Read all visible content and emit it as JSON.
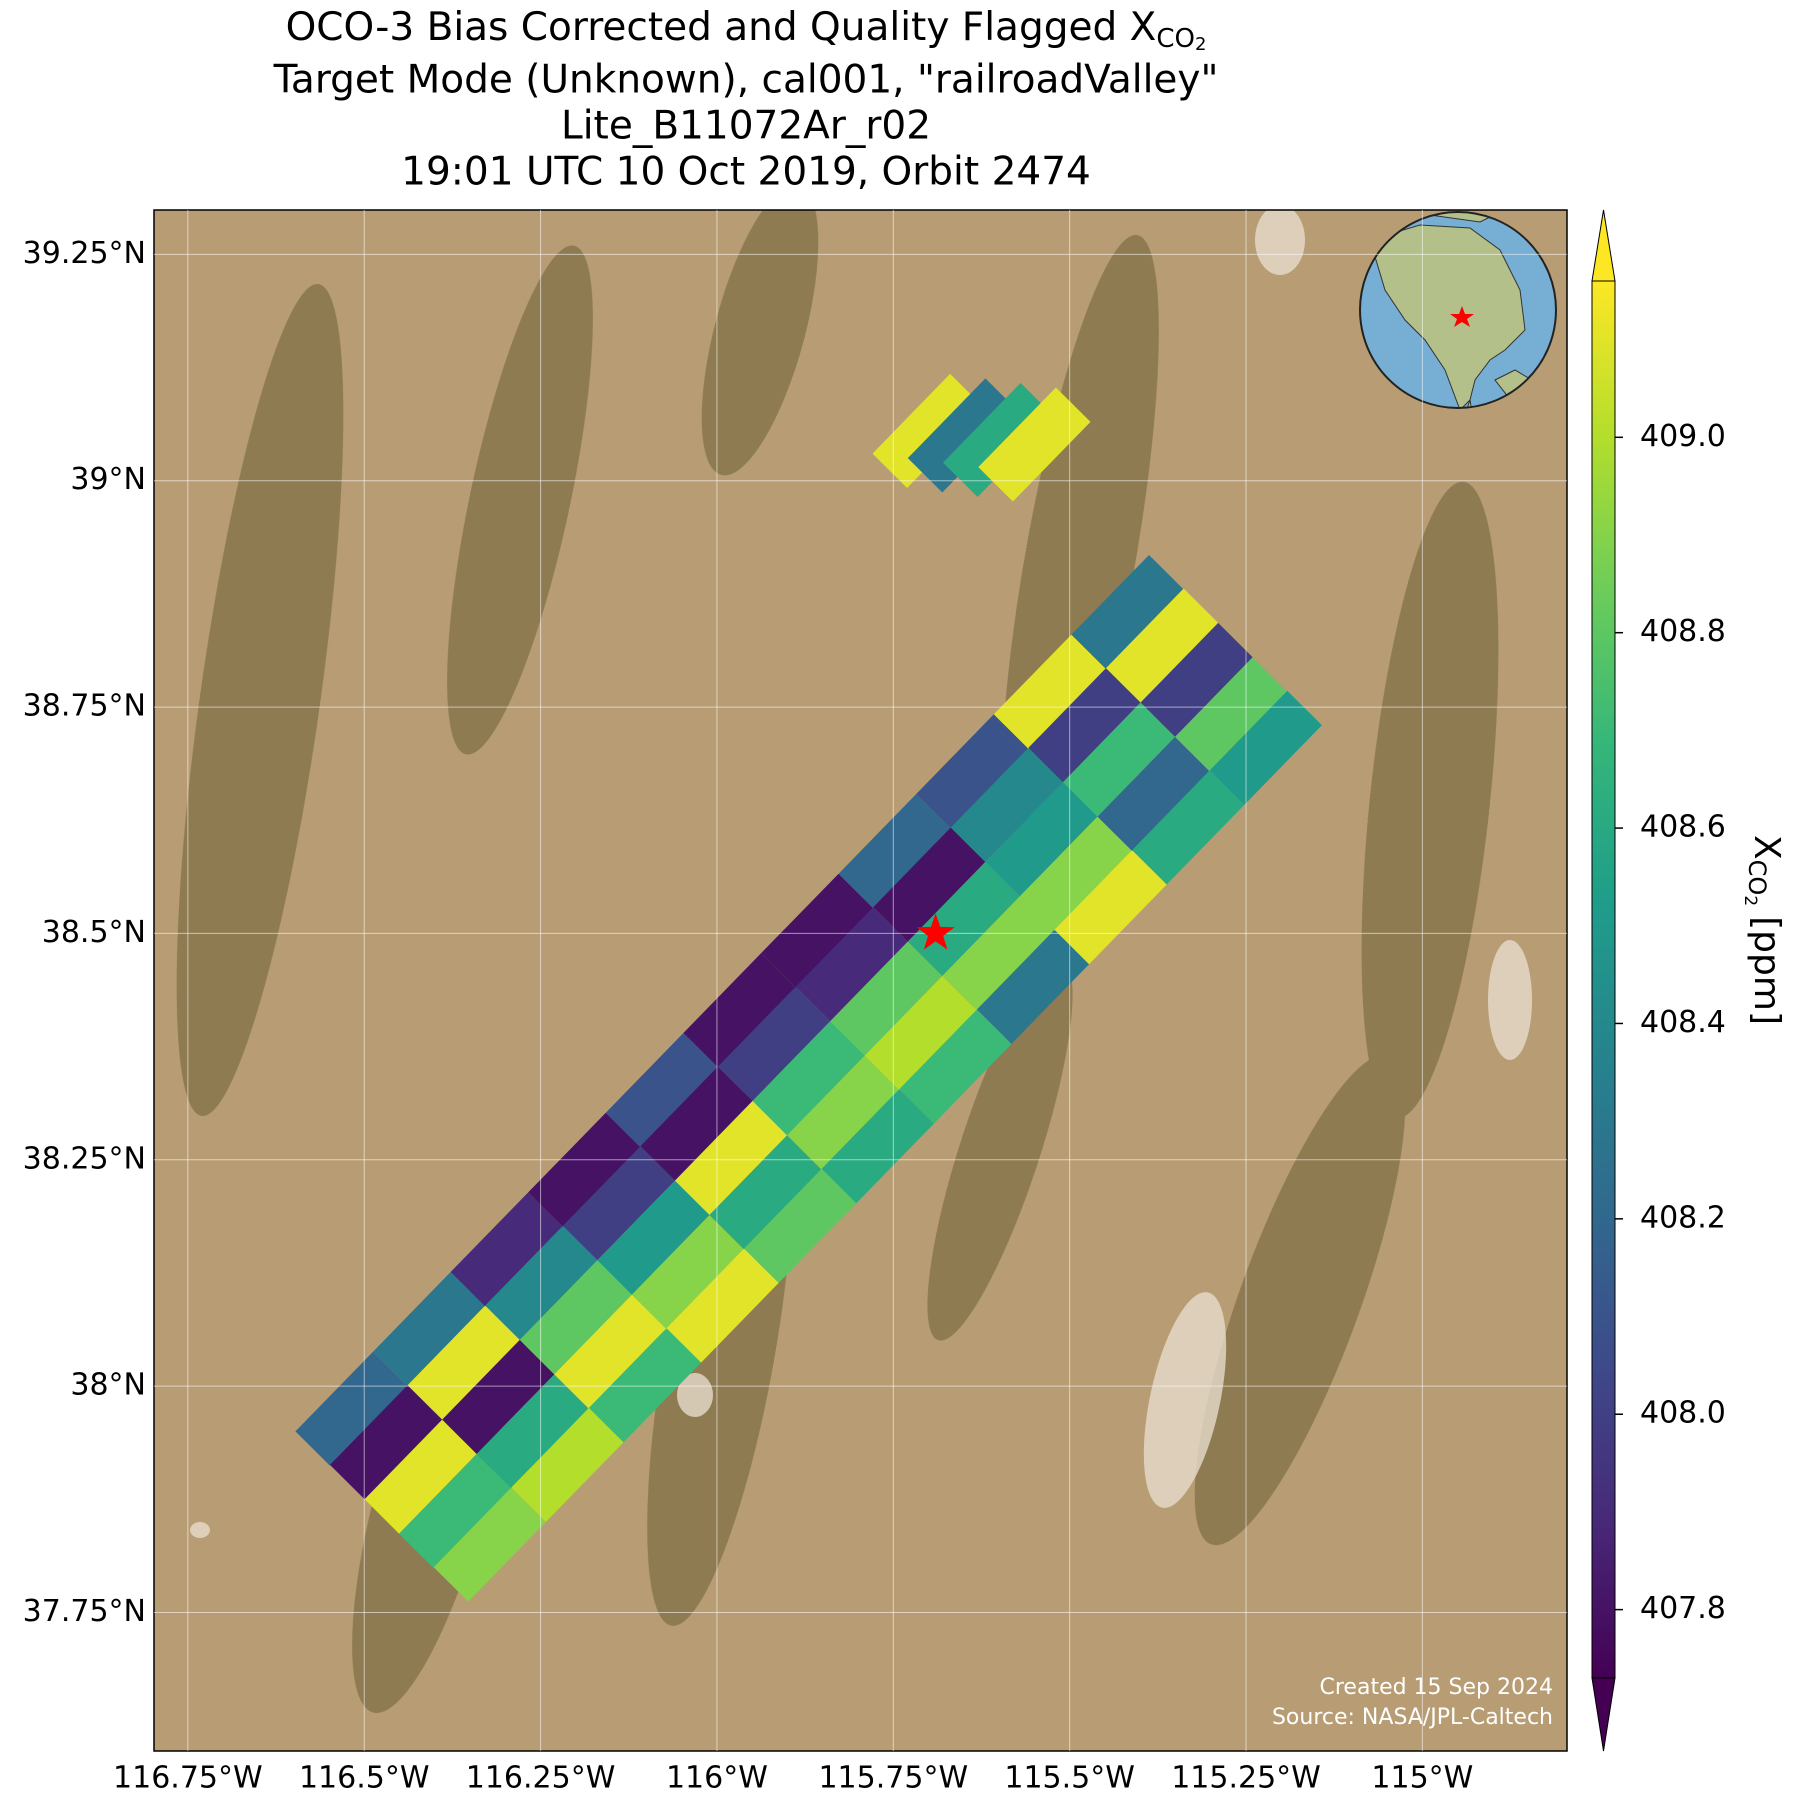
{
  "chart_data": {
    "type": "map",
    "title": [
      "OCO-3 Bias Corrected and Quality Flagged X",
      "Target Mode (Unknown), cal001, \"railroadValley\"",
      "Lite_B11072Ar_r02",
      "19:01 UTC 10 Oct 2019, Orbit 2474"
    ],
    "title_subscript": "CO",
    "title_subscript_digit": "2",
    "xlim": [
      -116.798,
      -114.795
    ],
    "ylim": [
      37.597,
      39.299
    ],
    "xticks": [
      {
        "value": -116.75,
        "label": "116.75°W"
      },
      {
        "value": -116.5,
        "label": "116.5°W"
      },
      {
        "value": -116.25,
        "label": "116.25°W"
      },
      {
        "value": -116,
        "label": "116°W"
      },
      {
        "value": -115.75,
        "label": "115.75°W"
      },
      {
        "value": -115.5,
        "label": "115.5°W"
      },
      {
        "value": -115.25,
        "label": "115.25°W"
      },
      {
        "value": -115,
        "label": "115°W"
      }
    ],
    "yticks": [
      {
        "value": 37.75,
        "label": "37.75°N"
      },
      {
        "value": 38,
        "label": "38°N"
      },
      {
        "value": 38.25,
        "label": "38.25°N"
      },
      {
        "value": 38.5,
        "label": "38.5°N"
      },
      {
        "value": 38.75,
        "label": "38.75°N"
      },
      {
        "value": 39,
        "label": "39°N"
      },
      {
        "value": 39.25,
        "label": "39.25°N"
      }
    ],
    "grid": true,
    "colorbar": {
      "label": "X",
      "label_subscript": "CO",
      "label_subscript_digit": "2",
      "label_unit": "[ppm]",
      "clim": [
        407.73,
        409.16
      ],
      "ticks": [
        407.8,
        {
          "value": 408,
          "label": "408.0"
        },
        408.2,
        408.4,
        408.6,
        408.8,
        {
          "value": 409,
          "label": "409.0"
        }
      ],
      "colormap": "viridis"
    },
    "soundings": {
      "lon": [
        -116.518,
        -116.469,
        -116.42,
        -116.371,
        -116.322,
        -116.408,
        -116.359,
        -116.31,
        -116.261,
        -116.212,
        -116.298,
        -116.249,
        -116.2,
        -116.151,
        -116.102,
        -116.188,
        -116.139,
        -116.09,
        -116.041,
        -115.992,
        -116.078,
        -116.029,
        -115.98,
        -115.931,
        -115.882,
        -115.968,
        -115.919,
        -115.87,
        -115.821,
        -115.772,
        -115.858,
        -115.809,
        -115.76,
        -115.711,
        -115.662,
        -115.748,
        -115.699,
        -115.65,
        -115.601,
        -115.552,
        -115.638,
        -115.589,
        -115.54,
        -115.491,
        -115.442,
        -115.528,
        -115.479,
        -115.43,
        -115.381,
        -115.332,
        -115.418,
        -115.369,
        -115.32,
        -115.271,
        -115.222,
        -115.7,
        -115.65,
        -115.6,
        -115.55
      ],
      "lat": [
        37.975,
        37.938,
        37.9,
        37.862,
        37.825,
        38.063,
        38.026,
        37.988,
        37.95,
        37.913,
        38.151,
        38.114,
        38.076,
        38.038,
        38.001,
        38.239,
        38.202,
        38.164,
        38.126,
        38.089,
        38.327,
        38.29,
        38.252,
        38.214,
        38.177,
        38.415,
        38.378,
        38.34,
        38.302,
        38.265,
        38.503,
        38.466,
        38.428,
        38.39,
        38.353,
        38.591,
        38.554,
        38.516,
        38.478,
        38.441,
        38.679,
        38.642,
        38.604,
        38.566,
        38.529,
        38.767,
        38.73,
        38.692,
        38.654,
        38.617,
        38.855,
        38.818,
        38.78,
        38.742,
        38.705,
        39.055,
        39.05,
        39.045,
        39.04
      ],
      "values": [
        408.2,
        407.8,
        409.1,
        408.7,
        408.9,
        408.3,
        409.1,
        407.8,
        408.6,
        409.0,
        407.9,
        408.4,
        408.8,
        409.1,
        408.7,
        407.8,
        408.0,
        408.5,
        408.9,
        409.1,
        408.1,
        407.8,
        409.1,
        408.6,
        408.8,
        407.8,
        408.0,
        408.7,
        408.9,
        408.6,
        407.8,
        407.9,
        408.8,
        409.0,
        408.7,
        408.2,
        407.8,
        408.6,
        408.9,
        408.3,
        408.1,
        408.4,
        408.5,
        408.9,
        409.1,
        409.1,
        408.0,
        408.7,
        408.2,
        408.6,
        408.3,
        409.1,
        408.0,
        408.8,
        408.5,
        409.1,
        408.3,
        408.6,
        409.1
      ]
    },
    "target": {
      "lon": -115.69,
      "lat": 38.5,
      "color": "#ff0000"
    },
    "annotations": [
      "Created 15 Sep 2024",
      "Source: NASA/JPL-Caltech"
    ]
  }
}
